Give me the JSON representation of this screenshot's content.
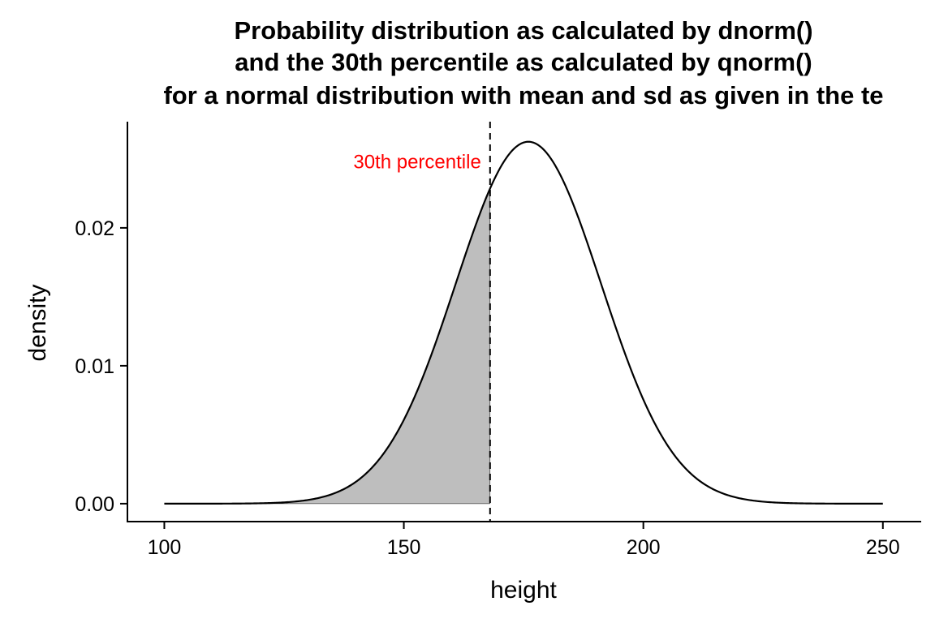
{
  "chart_data": {
    "type": "area",
    "title_lines": [
      "Probability distribution as calculated by dnorm()",
      "and the 30th percentile as calculated by qnorm()",
      "for a normal distribution with mean and sd as given in the te"
    ],
    "xlabel": "height",
    "ylabel": "density",
    "xlim": [
      92.3,
      258
    ],
    "ylim": [
      -0.0013,
      0.0277
    ],
    "x_ticks": [
      100,
      150,
      200,
      250
    ],
    "x_tick_labels": [
      "100",
      "150",
      "200",
      "250"
    ],
    "y_ticks": [
      0.0,
      0.01,
      0.02
    ],
    "y_tick_labels": [
      "0.00",
      "0.01",
      "0.02"
    ],
    "series": [
      {
        "distribution": "normal",
        "mean": 176,
        "sd": 15.2,
        "x_range": [
          100,
          250
        ],
        "line_color": "#000000"
      }
    ],
    "shaded_region": {
      "x_from": 100,
      "x_to": 168.0,
      "fill": "#bebebe"
    },
    "percentile_line": {
      "x": 168.0,
      "style": "dashed",
      "color": "#000000"
    },
    "annotation": {
      "text": "30th percentile",
      "x": 168.0,
      "y": 0.0248,
      "color": "#ff0000"
    },
    "grid": false,
    "legend": "none"
  }
}
